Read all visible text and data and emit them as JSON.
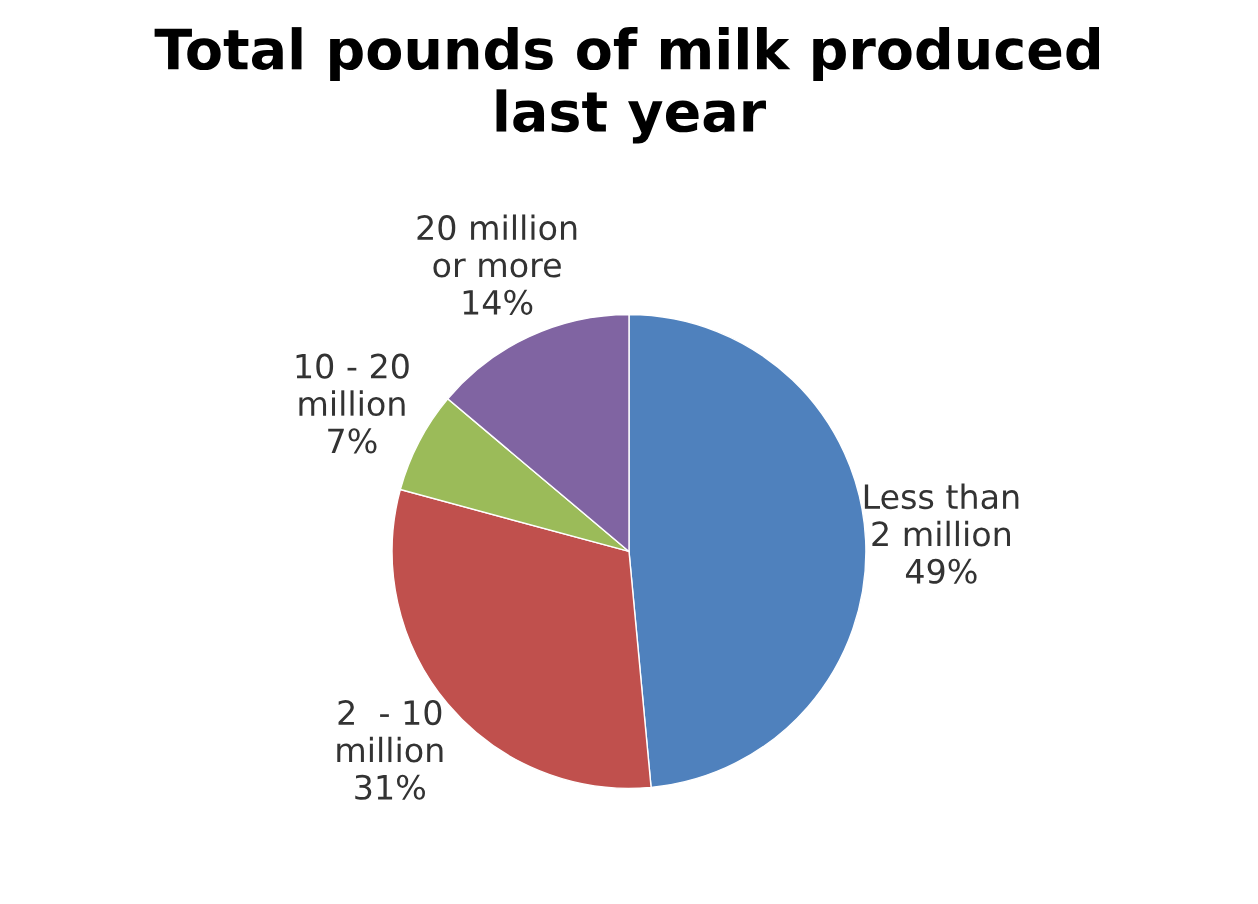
{
  "chart_data": {
    "type": "pie",
    "title": "Total pounds of milk produced\nlast year",
    "categories": [
      "Less than\n2 million",
      "2  - 10\nmillion",
      "10 - 20\nmillion",
      "20 million\nor more"
    ],
    "values": [
      49,
      31,
      7,
      14
    ],
    "value_labels": [
      "49%",
      "31%",
      "7%",
      "14%"
    ],
    "colors": [
      "#4f81bd",
      "#c0504d",
      "#9bbb59",
      "#8064a2"
    ],
    "legend": false
  }
}
